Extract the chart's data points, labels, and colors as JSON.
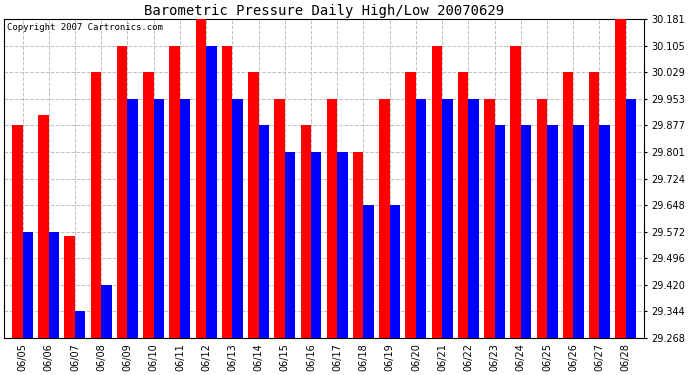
{
  "title": "Barometric Pressure Daily High/Low 20070629",
  "copyright": "Copyright 2007 Cartronics.com",
  "dates": [
    "06/05",
    "06/06",
    "06/07",
    "06/08",
    "06/09",
    "06/10",
    "06/11",
    "06/12",
    "06/13",
    "06/14",
    "06/15",
    "06/16",
    "06/17",
    "06/18",
    "06/19",
    "06/20",
    "06/21",
    "06/22",
    "06/23",
    "06/24",
    "06/25",
    "06/26",
    "06/27",
    "06/28"
  ],
  "highs": [
    29.877,
    29.906,
    29.56,
    30.029,
    30.105,
    30.029,
    30.105,
    30.181,
    30.105,
    30.029,
    29.953,
    29.877,
    29.953,
    29.801,
    29.953,
    30.029,
    30.105,
    30.029,
    29.953,
    30.105,
    29.953,
    30.029,
    30.029,
    30.181
  ],
  "lows": [
    29.572,
    29.572,
    29.344,
    29.42,
    29.953,
    29.953,
    29.953,
    30.105,
    29.953,
    29.877,
    29.801,
    29.801,
    29.801,
    29.648,
    29.648,
    29.953,
    29.953,
    29.953,
    29.877,
    29.877,
    29.877,
    29.877,
    29.877,
    29.953
  ],
  "high_color": "#ff0000",
  "low_color": "#0000ff",
  "bg_color": "#ffffff",
  "plot_bg_color": "#ffffff",
  "grid_color": "#c0c0c0",
  "ymin": 29.268,
  "ymax": 30.181,
  "yticks": [
    29.268,
    29.344,
    29.42,
    29.496,
    29.572,
    29.648,
    29.724,
    29.801,
    29.877,
    29.953,
    30.029,
    30.105,
    30.181
  ],
  "bar_width": 0.4,
  "figwidth": 6.9,
  "figheight": 3.75,
  "dpi": 100
}
